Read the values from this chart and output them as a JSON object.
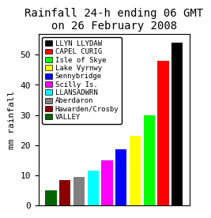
{
  "title": "Rainfall 24-h ending 06 GMT\non 26 February 2008",
  "ylabel": "mm rainfall",
  "bar_labels": [
    "VALLEY",
    "Hawarden/Crosby",
    "Aberdaron",
    "LLANSADWRN",
    "Scilly Is.",
    "Sennybridge",
    "Lake Vyrnwy",
    "Isle of Skye",
    "CAPEL CURIG",
    "LLYN LLYDAW"
  ],
  "values": [
    5,
    8.5,
    9.5,
    11.5,
    15,
    18.5,
    23,
    30,
    48,
    54
  ],
  "bar_colors": [
    "#006400",
    "#8B0000",
    "#808080",
    "#00ffff",
    "#ff00ff",
    "#0000ff",
    "#ffff00",
    "#00ff00",
    "#ff0000",
    "#000000"
  ],
  "legend_order": [
    "LLYN LLYDAW",
    "CAPEL CURIG",
    "Isle of Skye",
    "Lake Vyrnwy",
    "Sennybridge",
    "Scilly Is.",
    "LLANSADWRN",
    "Aberdaron",
    "Hawarden/Crosby",
    "VALLEY"
  ],
  "legend_colors": [
    "#000000",
    "#ff0000",
    "#00ff00",
    "#ffff00",
    "#0000ff",
    "#ff00ff",
    "#00ffff",
    "#808080",
    "#8B0000",
    "#006400"
  ],
  "ylim": [
    0,
    57
  ],
  "yticks": [
    0,
    10,
    20,
    30,
    40,
    50
  ],
  "title_fontsize": 10,
  "label_fontsize": 8,
  "legend_fontsize": 6.5,
  "background_color": "#ffffff"
}
